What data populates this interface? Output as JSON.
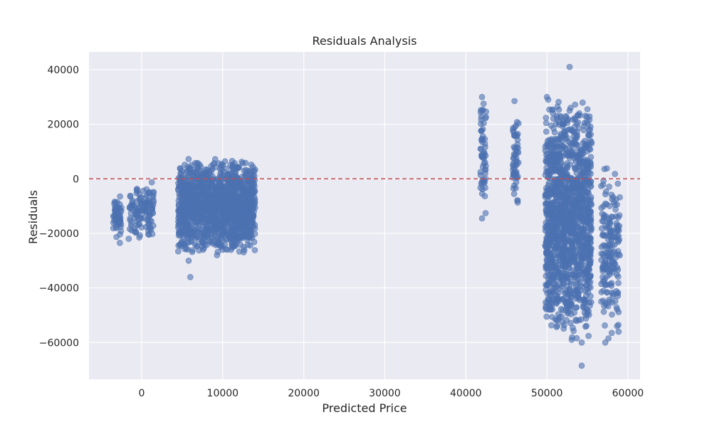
{
  "chart_data": {
    "type": "scatter",
    "title": "Residuals Analysis",
    "xlabel": "Predicted Price",
    "ylabel": "Residuals",
    "xlim": [
      -6500,
      61500
    ],
    "ylim": [
      -73500,
      46500
    ],
    "xticks": [
      0,
      10000,
      20000,
      30000,
      40000,
      50000,
      60000
    ],
    "yticks": [
      -60000,
      -40000,
      -20000,
      0,
      20000,
      40000
    ],
    "grid": true,
    "reference_line": {
      "y": 0,
      "color": "#c44e52",
      "style": "dashed"
    },
    "colors": {
      "background": "#eaeaf2",
      "grid": "#ffffff",
      "points": "#4c72b0"
    },
    "clusters": [
      {
        "x": [
          -3500,
          -2500
        ],
        "y": [
          -23500,
          -4500
        ],
        "density": 60
      },
      {
        "x": [
          -1500,
          1500
        ],
        "y": [
          -22000,
          -500
        ],
        "density": 120
      },
      {
        "x": [
          4500,
          14000
        ],
        "y": [
          -28000,
          8000
        ],
        "density": 1400
      },
      {
        "x": [
          41800,
          42500
        ],
        "y": [
          -14500,
          30000
        ],
        "density": 60
      },
      {
        "x": [
          45800,
          46500
        ],
        "y": [
          -13500,
          28500
        ],
        "density": 60
      },
      {
        "x": [
          49800,
          55500
        ],
        "y": [
          -60000,
          30000
        ],
        "density": 1400
      },
      {
        "x": [
          56700,
          59000
        ],
        "y": [
          -60000,
          4000
        ],
        "density": 180
      }
    ],
    "points": [
      [
        -2700,
        -23500
      ],
      [
        -1600,
        -22000
      ],
      [
        -300,
        -21500
      ],
      [
        900,
        -20500
      ],
      [
        6000,
        -36000
      ],
      [
        5800,
        -30000
      ],
      [
        9300,
        -28000
      ],
      [
        10000,
        -26000
      ],
      [
        12000,
        -21000
      ],
      [
        42000,
        -14500
      ],
      [
        42000,
        30000
      ],
      [
        46000,
        28500
      ],
      [
        50000,
        30000
      ],
      [
        52800,
        41000
      ],
      [
        50000,
        -39000
      ],
      [
        51200,
        -39500
      ],
      [
        54300,
        -68500
      ],
      [
        54300,
        -60000
      ],
      [
        57200,
        -60000
      ],
      [
        57600,
        -58500
      ],
      [
        58000,
        -56500
      ],
      [
        58400,
        1800
      ],
      [
        57100,
        3600
      ],
      [
        57400,
        3800
      ],
      [
        52800,
        25000
      ],
      [
        54000,
        24000
      ],
      [
        55000,
        25500
      ],
      [
        53200,
        -1500
      ]
    ]
  }
}
